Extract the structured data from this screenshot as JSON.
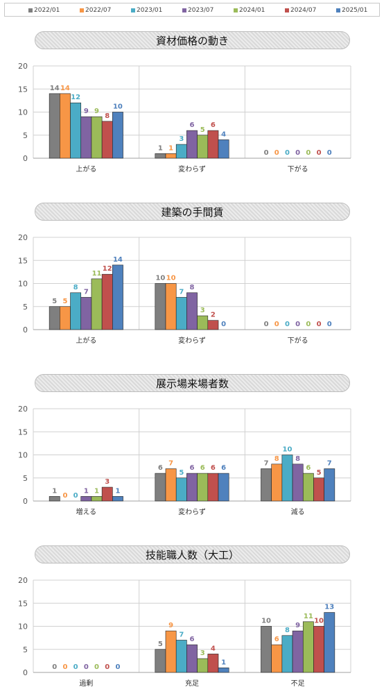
{
  "legend": [
    {
      "label": "2022/01",
      "color": "#7f7f7f"
    },
    {
      "label": "2022/07",
      "color": "#f79646"
    },
    {
      "label": "2023/01",
      "color": "#4bacc6"
    },
    {
      "label": "2023/07",
      "color": "#8064a2"
    },
    {
      "label": "2024/01",
      "color": "#9bbb59"
    },
    {
      "label": "2024/07",
      "color": "#c0504d"
    },
    {
      "label": "2025/01",
      "color": "#4f81bd"
    }
  ],
  "label_colors": [
    "#7f7f7f",
    "#f79646",
    "#4bacc6",
    "#8064a2",
    "#9bbb59",
    "#c0504d",
    "#4f81bd"
  ],
  "chart_data": [
    {
      "type": "bar",
      "title": "資材価格の動き",
      "categories": [
        "上がる",
        "変わらず",
        "下がる"
      ],
      "ylim": [
        0,
        20
      ],
      "yticks": [
        0,
        5,
        10,
        15,
        20
      ],
      "series": [
        {
          "name": "2022/01",
          "values": [
            14,
            1,
            0
          ]
        },
        {
          "name": "2022/07",
          "values": [
            14,
            1,
            0
          ]
        },
        {
          "name": "2023/01",
          "values": [
            12,
            3,
            0
          ]
        },
        {
          "name": "2023/07",
          "values": [
            9,
            6,
            0
          ]
        },
        {
          "name": "2024/01",
          "values": [
            9,
            5,
            0
          ]
        },
        {
          "name": "2024/07",
          "values": [
            8,
            6,
            0
          ]
        },
        {
          "name": "2025/01",
          "values": [
            10,
            4,
            0
          ]
        }
      ],
      "grid": true
    },
    {
      "type": "bar",
      "title": "建築の手間賃",
      "categories": [
        "上がる",
        "変わらず",
        "下がる"
      ],
      "ylim": [
        0,
        20
      ],
      "yticks": [
        0,
        5,
        10,
        15,
        20
      ],
      "series": [
        {
          "name": "2022/01",
          "values": [
            5,
            10,
            0
          ]
        },
        {
          "name": "2022/07",
          "values": [
            5,
            10,
            0
          ]
        },
        {
          "name": "2023/01",
          "values": [
            8,
            7,
            0
          ]
        },
        {
          "name": "2023/07",
          "values": [
            7,
            8,
            0
          ]
        },
        {
          "name": "2024/01",
          "values": [
            11,
            3,
            0
          ]
        },
        {
          "name": "2024/07",
          "values": [
            12,
            2,
            0
          ]
        },
        {
          "name": "2025/01",
          "values": [
            14,
            0,
            0
          ]
        }
      ],
      "grid": true
    },
    {
      "type": "bar",
      "title": "展示場来場者数",
      "categories": [
        "増える",
        "変わらず",
        "減る"
      ],
      "ylim": [
        0,
        20
      ],
      "yticks": [
        0,
        5,
        10,
        15,
        20
      ],
      "series": [
        {
          "name": "2022/01",
          "values": [
            1,
            6,
            7
          ]
        },
        {
          "name": "2022/07",
          "values": [
            0,
            7,
            8
          ]
        },
        {
          "name": "2023/01",
          "values": [
            0,
            5,
            10
          ]
        },
        {
          "name": "2023/07",
          "values": [
            1,
            6,
            8
          ]
        },
        {
          "name": "2024/01",
          "values": [
            1,
            6,
            6
          ]
        },
        {
          "name": "2024/07",
          "values": [
            3,
            6,
            5
          ]
        },
        {
          "name": "2025/01",
          "values": [
            1,
            6,
            7
          ]
        }
      ],
      "grid": true
    },
    {
      "type": "bar",
      "title": "技能職人数（大工）",
      "categories": [
        "過剰",
        "充足",
        "不足"
      ],
      "ylim": [
        0,
        20
      ],
      "yticks": [
        0,
        5,
        10,
        15,
        20
      ],
      "series": [
        {
          "name": "2022/01",
          "values": [
            0,
            5,
            10
          ]
        },
        {
          "name": "2022/07",
          "values": [
            0,
            9,
            6
          ]
        },
        {
          "name": "2023/01",
          "values": [
            0,
            7,
            8
          ]
        },
        {
          "name": "2023/07",
          "values": [
            0,
            6,
            9
          ]
        },
        {
          "name": "2024/01",
          "values": [
            0,
            3,
            11
          ]
        },
        {
          "name": "2024/07",
          "values": [
            0,
            4,
            10
          ]
        },
        {
          "name": "2025/01",
          "values": [
            0,
            1,
            13
          ]
        }
      ],
      "grid": true
    }
  ]
}
